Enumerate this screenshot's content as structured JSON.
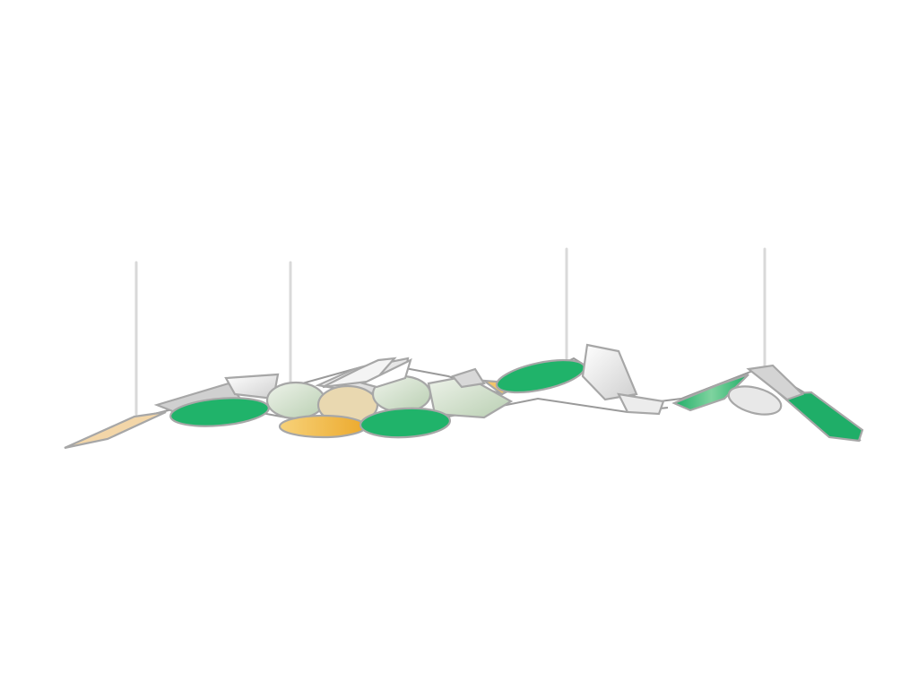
{
  "scene": {
    "subject": "suspended-pendant-sculpture",
    "background": "#ffffff",
    "colors": {
      "green": "#20b36a",
      "green_dark": "#159e59",
      "sage": "#c9dcc1",
      "mint": "#dfeee0",
      "amber": "#f0b53a",
      "silver": "#e3e3e3",
      "steel": "#9a9a9a",
      "cable": "#d9d9d9"
    }
  }
}
